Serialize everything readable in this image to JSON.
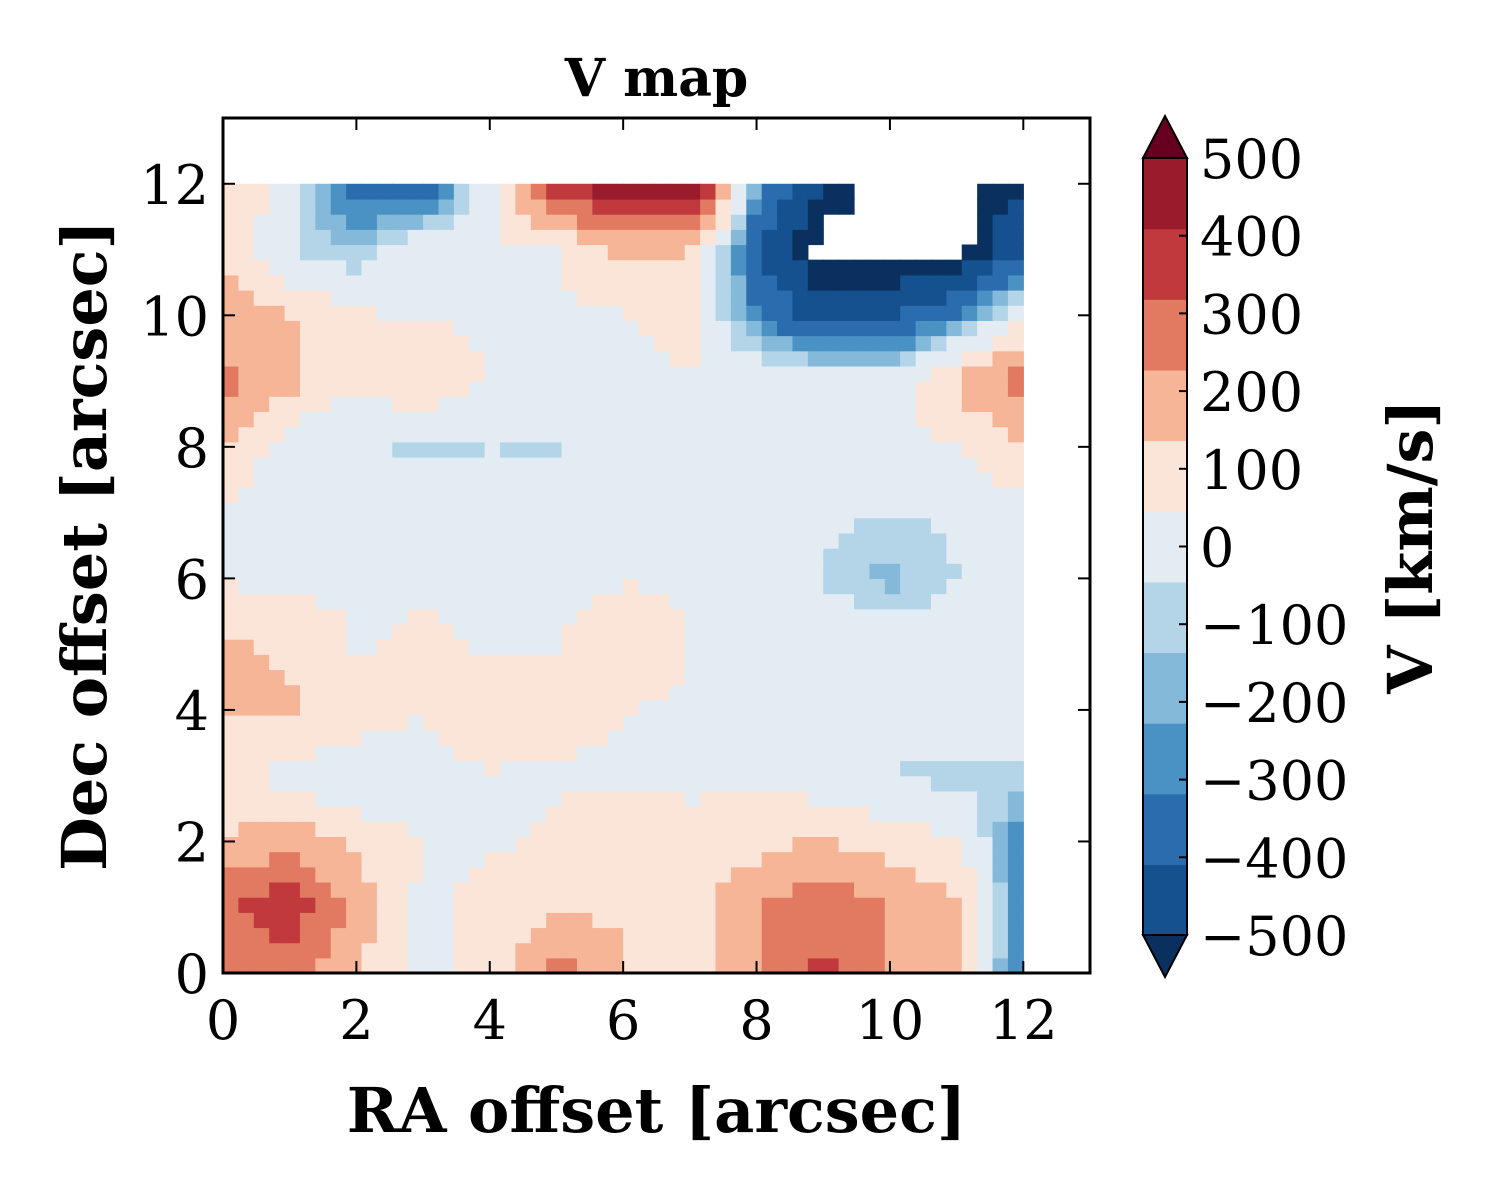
{
  "chart_data": {
    "type": "heatmap",
    "subtype": "filled-contour",
    "title": "V map",
    "xlabel": "RA offset [arcsec]",
    "ylabel": "Dec offset [arcsec]",
    "xlim": [
      0,
      13
    ],
    "ylim": [
      0,
      13
    ],
    "xticks": [
      "0",
      "2",
      "4",
      "6",
      "8",
      "10",
      "12"
    ],
    "yticks": [
      "0",
      "2",
      "4",
      "6",
      "8",
      "10",
      "12"
    ],
    "grid": false,
    "colormap": "RdBu_r",
    "colorbar": {
      "label": "V [km/s]",
      "ticks": [
        "500",
        "400",
        "300",
        "200",
        "100",
        "0",
        "−100",
        "−200",
        "−300",
        "−400",
        "−500"
      ],
      "range": [
        -500,
        500
      ],
      "extend": "both",
      "colors": [
        "#0a305f",
        "#15508f",
        "#2b6cae",
        "#4a92c4",
        "#84b9d9",
        "#b4d5e8",
        "#e4ecf3",
        "#fbe5d8",
        "#f6b597",
        "#e27a61",
        "#c03a3d",
        "#9a1b2c",
        "#67001f"
      ]
    },
    "x": [
      0,
      1,
      2,
      3,
      4,
      5,
      6,
      7,
      8,
      9,
      10,
      11,
      12
    ],
    "y": [
      0,
      1,
      2,
      3,
      4,
      5,
      6,
      7,
      8,
      9,
      10,
      11,
      12
    ],
    "z": [
      [
        150,
        200,
        50,
        -80,
        -20,
        200,
        60,
        -20,
        120,
        280,
        130,
        80,
        -350
      ],
      [
        230,
        320,
        130,
        -80,
        -20,
        20,
        40,
        20,
        140,
        230,
        140,
        70,
        -330
      ],
      [
        60,
        120,
        20,
        -50,
        -60,
        -40,
        20,
        -40,
        20,
        60,
        0,
        -40,
        -300
      ],
      [
        -40,
        -80,
        -150,
        -80,
        -60,
        -60,
        -60,
        -60,
        -60,
        -120,
        -160,
        -170,
        -180
      ],
      [
        60,
        60,
        20,
        -50,
        30,
        -20,
        -50,
        -60,
        -60,
        -60,
        -60,
        -60,
        -80
      ],
      [
        60,
        40,
        -60,
        -40,
        -60,
        -60,
        50,
        -60,
        -80,
        -60,
        -80,
        -90,
        -90
      ],
      [
        -60,
        -90,
        -60,
        -60,
        -60,
        -80,
        -60,
        -60,
        -80,
        -160,
        -220,
        -150,
        -140
      ],
      [
        -60,
        -150,
        -140,
        -120,
        -100,
        -80,
        -60,
        -60,
        -80,
        -130,
        -150,
        -140,
        -80
      ],
      [
        60,
        -120,
        -140,
        -160,
        -150,
        -160,
        -80,
        -60,
        -60,
        -60,
        -60,
        -60,
        40
      ],
      [
        180,
        80,
        -40,
        30,
        -60,
        -60,
        -60,
        -60,
        -60,
        -80,
        -120,
        70,
        220
      ],
      [
        120,
        50,
        -40,
        -60,
        -60,
        -60,
        -60,
        -10,
        -300,
        -450,
        -420,
        -300,
        -60
      ],
      [
        50,
        -150,
        -200,
        -60,
        -50,
        -60,
        80,
        60,
        -400,
        -600,
        -600,
        -600,
        -400
      ],
      [
        70,
        -120,
        -350,
        -400,
        -80,
        350,
        420,
        500,
        -250,
        -500,
        -600,
        -600,
        -500
      ]
    ],
    "levels": [
      -500,
      -400,
      -300,
      -250,
      -200,
      -150,
      -50,
      50,
      150,
      250,
      350,
      450,
      500
    ]
  }
}
